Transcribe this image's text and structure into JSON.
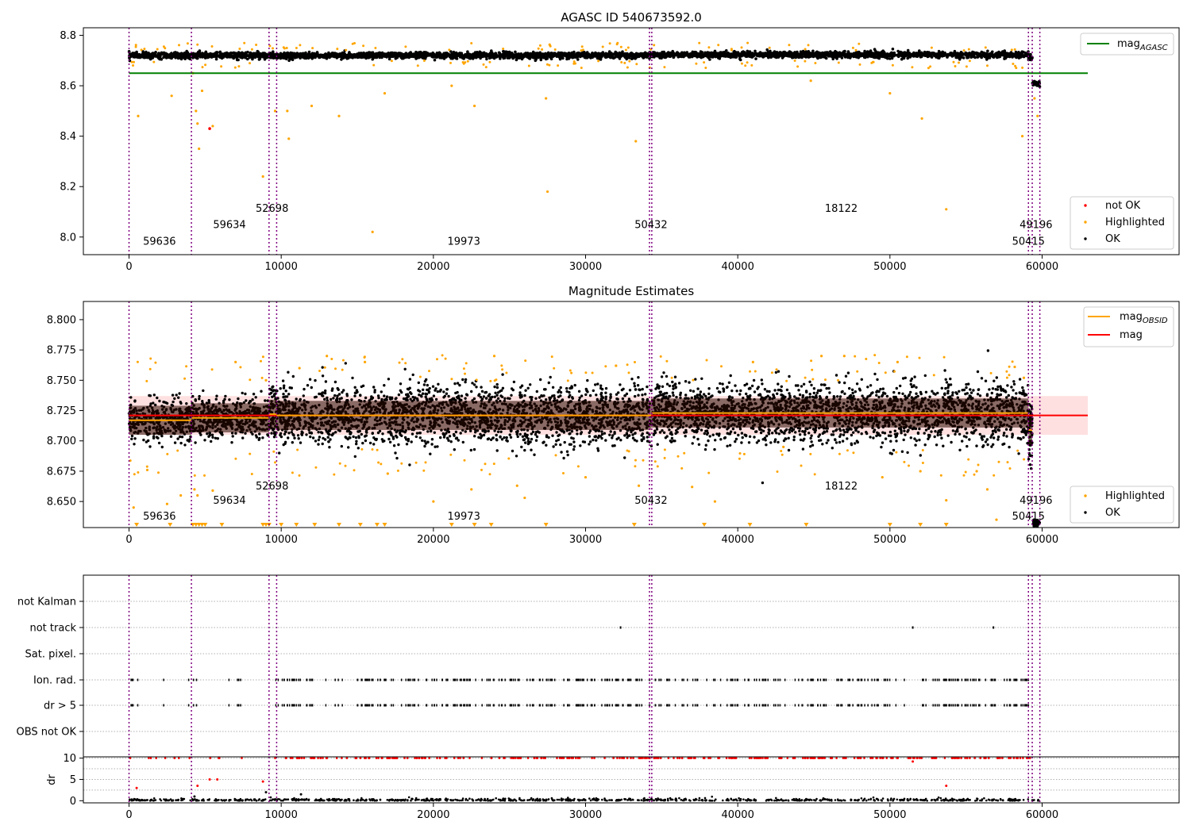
{
  "chart_data": [
    {
      "type": "scatter",
      "title": "AGASC ID 540673592.0",
      "xlim": [
        -3000,
        69000
      ],
      "ylim": [
        7.93,
        8.83
      ],
      "xticks": [
        0,
        10000,
        20000,
        30000,
        40000,
        50000,
        60000
      ],
      "yticks": [
        8.0,
        8.2,
        8.4,
        8.6,
        8.8
      ],
      "ytick_labels": [
        "8.0",
        "8.2",
        "8.4",
        "8.6",
        "8.8"
      ],
      "segments": [
        {
          "start": 0,
          "end": 4100,
          "mean": 8.72
        },
        {
          "start": 4100,
          "end": 9200,
          "mean": 8.72
        },
        {
          "start": 9200,
          "end": 9700,
          "mean": 8.72
        },
        {
          "start": 9700,
          "end": 34300,
          "mean": 8.72
        },
        {
          "start": 34300,
          "end": 59100,
          "mean": 8.723
        },
        {
          "start": 59100,
          "end": 59350,
          "mean": 8.71
        },
        {
          "start": 59350,
          "end": 59850,
          "mean": 8.61
        }
      ],
      "obs_boundaries": [
        0,
        4100,
        9200,
        9700,
        34200,
        34350,
        59100,
        59350,
        59850
      ],
      "reference_line": {
        "name": "mag_AGASC",
        "value": 8.65,
        "x": [
          0,
          63000
        ],
        "color": "#008000"
      },
      "highlighted": [
        [
          600,
          8.48
        ],
        [
          2800,
          8.56
        ],
        [
          4200,
          8.65
        ],
        [
          4400,
          8.5
        ],
        [
          4500,
          8.45
        ],
        [
          4600,
          8.35
        ],
        [
          4800,
          8.58
        ],
        [
          5500,
          8.44
        ],
        [
          8800,
          8.24
        ],
        [
          9600,
          8.5
        ],
        [
          10500,
          8.39
        ],
        [
          10400,
          8.5
        ],
        [
          12000,
          8.52
        ],
        [
          13800,
          8.48
        ],
        [
          16000,
          8.02
        ],
        [
          16800,
          8.57
        ],
        [
          21200,
          8.6
        ],
        [
          22700,
          8.52
        ],
        [
          27400,
          8.55
        ],
        [
          27500,
          8.18
        ],
        [
          53700,
          8.11
        ],
        [
          52100,
          8.47
        ],
        [
          50000,
          8.57
        ],
        [
          44800,
          8.62
        ],
        [
          33300,
          8.38
        ],
        [
          59500,
          8.55
        ],
        [
          59700,
          8.48
        ],
        [
          58700,
          8.4
        ]
      ],
      "not_ok": [
        [
          5300,
          8.43
        ]
      ],
      "annotations": [
        {
          "text": "59636",
          "x": 2000,
          "y": 7.97
        },
        {
          "text": "59634",
          "x": 6600,
          "y": 8.035
        },
        {
          "text": "52698",
          "x": 9400,
          "y": 8.1
        },
        {
          "text": "19973",
          "x": 22000,
          "y": 7.97
        },
        {
          "text": "50432",
          "x": 34300,
          "y": 8.035
        },
        {
          "text": "18122",
          "x": 46800,
          "y": 8.1
        },
        {
          "text": "49196",
          "x": 59600,
          "y": 8.035
        },
        {
          "text": "50415",
          "x": 59100,
          "y": 7.97
        }
      ],
      "legends": [
        {
          "position": "upper-right",
          "entries": [
            {
              "label": "mag",
              "sub": "AGASC",
              "kind": "line",
              "color": "#008000"
            }
          ]
        },
        {
          "position": "lower-right",
          "entries": [
            {
              "label": "not OK",
              "kind": "dot",
              "color": "#ff0000"
            },
            {
              "label": "Highlighted",
              "kind": "dot",
              "color": "#ffa500"
            },
            {
              "label": "OK",
              "kind": "dot",
              "color": "#000000"
            }
          ]
        }
      ]
    },
    {
      "type": "scatter",
      "title": "Magnitude Estimates",
      "xlim": [
        -3000,
        69000
      ],
      "ylim": [
        8.6285,
        8.815
      ],
      "xticks": [
        0,
        10000,
        20000,
        30000,
        40000,
        50000,
        60000
      ],
      "yticks": [
        8.65,
        8.675,
        8.7,
        8.725,
        8.75,
        8.775,
        8.8
      ],
      "ytick_labels": [
        "8.650",
        "8.675",
        "8.700",
        "8.725",
        "8.750",
        "8.775",
        "8.800"
      ],
      "mag": {
        "value": 8.721,
        "band": [
          8.705,
          8.737
        ],
        "x": [
          0,
          63000
        ],
        "color": "#ff0000"
      },
      "mag_obsid": [
        {
          "start": 0,
          "end": 4100,
          "value": 8.717
        },
        {
          "start": 4100,
          "end": 9200,
          "value": 8.719
        },
        {
          "start": 9200,
          "end": 9700,
          "value": 8.722
        },
        {
          "start": 9700,
          "end": 34300,
          "value": 8.721
        },
        {
          "start": 34300,
          "end": 59100,
          "value": 8.723
        },
        {
          "start": 59100,
          "end": 59350,
          "value": 8.709
        }
      ],
      "highlighted": [
        [
          300,
          8.645
        ],
        [
          1200,
          8.676
        ],
        [
          2500,
          8.648
        ],
        [
          3400,
          8.655
        ],
        [
          4300,
          8.66
        ],
        [
          4500,
          8.655
        ],
        [
          5500,
          8.659
        ],
        [
          7000,
          8.765
        ],
        [
          9000,
          8.75
        ],
        [
          11200,
          8.76
        ],
        [
          13000,
          8.77
        ],
        [
          15500,
          8.765
        ],
        [
          17000,
          8.673
        ],
        [
          20000,
          8.65
        ],
        [
          22500,
          8.66
        ],
        [
          24000,
          8.77
        ],
        [
          25500,
          8.663
        ],
        [
          26000,
          8.653
        ],
        [
          30000,
          8.67
        ],
        [
          32000,
          8.762
        ],
        [
          33500,
          8.663
        ],
        [
          37000,
          8.662
        ],
        [
          38500,
          8.65
        ],
        [
          41000,
          8.765
        ],
        [
          43000,
          8.695
        ],
        [
          45500,
          8.77
        ],
        [
          47000,
          8.77
        ],
        [
          49500,
          8.67
        ],
        [
          50500,
          8.765
        ],
        [
          52000,
          8.675
        ],
        [
          53700,
          8.651
        ],
        [
          55700,
          8.675
        ],
        [
          56400,
          8.66
        ],
        [
          57000,
          8.635
        ],
        [
          58200,
          8.761
        ],
        [
          58800,
          8.752
        ]
      ],
      "clipped_low_x": [
        500,
        2700,
        4200,
        4400,
        4600,
        4800,
        5000,
        6100,
        8800,
        9000,
        9200,
        10000,
        11000,
        12200,
        13800,
        15200,
        16300,
        16800,
        21200,
        22700,
        23800,
        27400,
        33200,
        37800,
        40800,
        44500,
        50000,
        52000,
        53700
      ],
      "obs_boundaries": [
        0,
        4100,
        9200,
        9700,
        34200,
        34350,
        59100,
        59350,
        59850
      ],
      "annotations": [
        {
          "text": "59636",
          "x": 2000,
          "y": 8.635
        },
        {
          "text": "59634",
          "x": 6600,
          "y": 8.648
        },
        {
          "text": "52698",
          "x": 9400,
          "y": 8.66
        },
        {
          "text": "19973",
          "x": 22000,
          "y": 8.635
        },
        {
          "text": "50432",
          "x": 34300,
          "y": 8.648
        },
        {
          "text": "18122",
          "x": 46800,
          "y": 8.66
        },
        {
          "text": "49196",
          "x": 59600,
          "y": 8.648
        },
        {
          "text": "50415",
          "x": 59100,
          "y": 8.635
        }
      ],
      "legends": [
        {
          "position": "upper-right",
          "entries": [
            {
              "label": "mag",
              "sub": "OBSID",
              "kind": "line",
              "color": "#ffa500"
            },
            {
              "label": "mag",
              "kind": "line",
              "color": "#ff0000"
            }
          ]
        },
        {
          "position": "lower-right",
          "entries": [
            {
              "label": "Highlighted",
              "kind": "dot",
              "color": "#ffa500"
            },
            {
              "label": "OK",
              "kind": "dot",
              "color": "#000000"
            }
          ]
        }
      ]
    },
    {
      "type": "scatter",
      "title": "",
      "xlim": [
        -3000,
        69000
      ],
      "flag_labels": [
        "not Kalman",
        "not track",
        "Sat. pixel.",
        "Ion. rad.",
        "dr > 5",
        "OBS not OK"
      ],
      "not_track_x": [
        32300,
        51500,
        56800
      ],
      "obs_boundaries": [
        0,
        4100,
        9200,
        9700,
        34200,
        34350,
        59100,
        59350,
        59850
      ]
    },
    {
      "type": "scatter",
      "title": "",
      "ylabel": "dr",
      "xlim": [
        -3000,
        69000
      ],
      "ylim": [
        -0.5,
        10.3
      ],
      "xticks": [
        0,
        10000,
        20000,
        30000,
        40000,
        50000,
        60000
      ],
      "yticks": [
        0,
        5,
        10
      ],
      "clip_value": 10,
      "dr_outliers": [
        [
          500,
          3.0
        ],
        [
          4500,
          3.5
        ],
        [
          5300,
          5.0
        ],
        [
          5800,
          5.0
        ],
        [
          8800,
          4.5
        ],
        [
          53700,
          3.5
        ],
        [
          51500,
          9.2
        ],
        [
          4300,
          1.0
        ],
        [
          9000,
          2.0
        ],
        [
          11300,
          1.5
        ]
      ],
      "obs_boundaries": [
        0,
        4100,
        9200,
        9700,
        34200,
        34350,
        59100,
        59350,
        59850
      ]
    }
  ]
}
